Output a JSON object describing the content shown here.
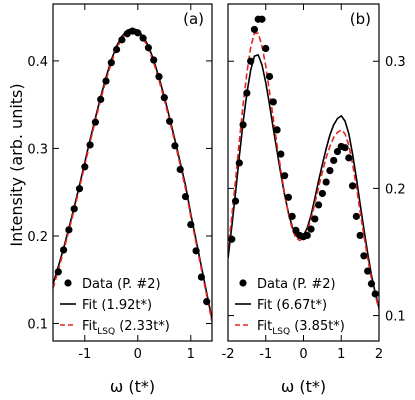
{
  "figure": {
    "ylabel": "Intensity (arb. units)"
  },
  "chart_data": [
    {
      "type": "line",
      "panel": "(a)",
      "xlabel": "ω (t*)",
      "ylabel": "Intensity (arb. units)",
      "xlim": [
        -1.6,
        1.4
      ],
      "ylim": [
        0.08,
        0.465
      ],
      "xticks": [
        -1,
        0,
        1
      ],
      "yticks": [
        0.1,
        0.2,
        0.3,
        0.4
      ],
      "ytick_side": "left",
      "legend_position": "bottom-left",
      "series": [
        {
          "name": "Data (P. #2)",
          "kind": "markers",
          "color": "#000000",
          "x": [
            -1.5,
            -1.4,
            -1.3,
            -1.2,
            -1.1,
            -1.0,
            -0.9,
            -0.8,
            -0.7,
            -0.6,
            -0.5,
            -0.4,
            -0.3,
            -0.2,
            -0.1,
            0.0,
            0.1,
            0.2,
            0.3,
            0.4,
            0.5,
            0.6,
            0.7,
            0.8,
            0.9,
            1.0,
            1.1,
            1.2,
            1.3
          ],
          "y": [
            0.159,
            0.184,
            0.207,
            0.231,
            0.254,
            0.279,
            0.304,
            0.33,
            0.356,
            0.377,
            0.398,
            0.413,
            0.424,
            0.431,
            0.434,
            0.432,
            0.426,
            0.415,
            0.401,
            0.382,
            0.358,
            0.331,
            0.303,
            0.276,
            0.245,
            0.213,
            0.183,
            0.153,
            0.125
          ]
        },
        {
          "name": "Fit (1.92t*)",
          "kind": "line",
          "color": "#000000",
          "dash": "solid",
          "x": [
            -1.6,
            -1.5,
            -1.4,
            -1.3,
            -1.2,
            -1.1,
            -1.0,
            -0.9,
            -0.8,
            -0.7,
            -0.6,
            -0.5,
            -0.4,
            -0.3,
            -0.2,
            -0.1,
            0.0,
            0.1,
            0.2,
            0.3,
            0.4,
            0.5,
            0.6,
            0.7,
            0.8,
            0.9,
            1.0,
            1.1,
            1.2,
            1.3,
            1.4
          ],
          "y": [
            0.145,
            0.165,
            0.186,
            0.209,
            0.233,
            0.258,
            0.284,
            0.31,
            0.335,
            0.359,
            0.381,
            0.401,
            0.417,
            0.428,
            0.435,
            0.437,
            0.435,
            0.428,
            0.417,
            0.401,
            0.381,
            0.359,
            0.335,
            0.31,
            0.284,
            0.258,
            0.225,
            0.195,
            0.165,
            0.135,
            0.105
          ]
        },
        {
          "name": "Fit_LSQ (2.33t*)",
          "kind": "line",
          "color": "#e8251f",
          "dash": "dashed",
          "x": [
            -1.6,
            -1.5,
            -1.4,
            -1.3,
            -1.2,
            -1.1,
            -1.0,
            -0.9,
            -0.8,
            -0.7,
            -0.6,
            -0.5,
            -0.4,
            -0.3,
            -0.2,
            -0.1,
            0.0,
            0.1,
            0.2,
            0.3,
            0.4,
            0.5,
            0.6,
            0.7,
            0.8,
            0.9,
            1.0,
            1.1,
            1.2,
            1.3,
            1.4
          ],
          "y": [
            0.14,
            0.161,
            0.183,
            0.206,
            0.23,
            0.255,
            0.281,
            0.307,
            0.332,
            0.356,
            0.378,
            0.398,
            0.414,
            0.426,
            0.433,
            0.435,
            0.433,
            0.426,
            0.414,
            0.398,
            0.378,
            0.356,
            0.332,
            0.307,
            0.281,
            0.254,
            0.222,
            0.192,
            0.162,
            0.132,
            0.102
          ]
        }
      ],
      "legend": [
        {
          "series": 0,
          "text": "Data (P. #2)"
        },
        {
          "series": 1,
          "text": "Fit (1.92t*)"
        },
        {
          "series": 2,
          "text_main": "Fit",
          "text_sub": "LSQ",
          "text_after": " (2.33t*)"
        }
      ]
    },
    {
      "type": "line",
      "panel": "(b)",
      "xlabel": "ω (t*)",
      "xlim": [
        -2.0,
        2.0
      ],
      "ylim": [
        0.08,
        0.345
      ],
      "xticks": [
        -2,
        -1,
        0,
        1,
        2
      ],
      "yticks": [
        0.1,
        0.2,
        0.3
      ],
      "ytick_side": "right",
      "legend_position": "bottom-left",
      "series": [
        {
          "name": "Data (P. #2)",
          "kind": "markers",
          "color": "#000000",
          "x": [
            -1.9,
            -1.8,
            -1.7,
            -1.6,
            -1.5,
            -1.4,
            -1.3,
            -1.2,
            -1.1,
            -1.0,
            -0.9,
            -0.8,
            -0.7,
            -0.6,
            -0.5,
            -0.4,
            -0.3,
            -0.2,
            -0.1,
            0.0,
            0.1,
            0.2,
            0.3,
            0.4,
            0.5,
            0.6,
            0.7,
            0.8,
            0.9,
            1.0,
            1.1,
            1.2,
            1.3,
            1.4,
            1.5,
            1.6,
            1.7,
            1.8,
            1.9
          ],
          "y": [
            0.16,
            0.19,
            0.22,
            0.25,
            0.275,
            0.3,
            0.325,
            0.333,
            0.333,
            0.31,
            0.288,
            0.268,
            0.246,
            0.227,
            0.21,
            0.193,
            0.178,
            0.167,
            0.163,
            0.162,
            0.163,
            0.168,
            0.176,
            0.187,
            0.196,
            0.205,
            0.214,
            0.222,
            0.229,
            0.233,
            0.232,
            0.224,
            0.202,
            0.178,
            0.163,
            0.147,
            0.135,
            0.125,
            0.117
          ]
        },
        {
          "name": "Fit (6.67t*)",
          "kind": "line",
          "color": "#000000",
          "dash": "solid",
          "x": [
            -2.0,
            -1.9,
            -1.8,
            -1.7,
            -1.6,
            -1.5,
            -1.4,
            -1.3,
            -1.2,
            -1.1,
            -1.0,
            -0.9,
            -0.8,
            -0.7,
            -0.6,
            -0.5,
            -0.4,
            -0.3,
            -0.2,
            -0.1,
            0.0,
            0.1,
            0.2,
            0.3,
            0.4,
            0.5,
            0.6,
            0.7,
            0.8,
            0.9,
            1.0,
            1.1,
            1.2,
            1.3,
            1.4,
            1.5,
            1.6,
            1.7,
            1.8,
            1.9,
            2.0
          ],
          "y": [
            0.145,
            0.17,
            0.197,
            0.225,
            0.252,
            0.275,
            0.293,
            0.304,
            0.305,
            0.297,
            0.283,
            0.266,
            0.247,
            0.229,
            0.211,
            0.195,
            0.181,
            0.17,
            0.163,
            0.161,
            0.163,
            0.169,
            0.179,
            0.192,
            0.206,
            0.219,
            0.231,
            0.242,
            0.25,
            0.255,
            0.257,
            0.253,
            0.243,
            0.227,
            0.208,
            0.188,
            0.168,
            0.149,
            0.132,
            0.118,
            0.106
          ]
        },
        {
          "name": "Fit_LSQ (3.85t*)",
          "kind": "line",
          "color": "#e8251f",
          "dash": "dashed",
          "x": [
            -2.0,
            -1.9,
            -1.8,
            -1.7,
            -1.6,
            -1.5,
            -1.4,
            -1.3,
            -1.2,
            -1.1,
            -1.0,
            -0.9,
            -0.8,
            -0.7,
            -0.6,
            -0.5,
            -0.4,
            -0.3,
            -0.2,
            -0.1,
            0.0,
            0.1,
            0.2,
            0.3,
            0.4,
            0.5,
            0.6,
            0.7,
            0.8,
            0.9,
            1.0,
            1.1,
            1.2,
            1.3,
            1.4,
            1.5,
            1.6,
            1.7,
            1.8,
            1.9,
            2.0
          ],
          "y": [
            0.152,
            0.178,
            0.207,
            0.237,
            0.266,
            0.291,
            0.311,
            0.322,
            0.322,
            0.312,
            0.296,
            0.276,
            0.255,
            0.234,
            0.214,
            0.196,
            0.18,
            0.168,
            0.161,
            0.159,
            0.161,
            0.167,
            0.176,
            0.188,
            0.201,
            0.213,
            0.224,
            0.233,
            0.24,
            0.244,
            0.246,
            0.243,
            0.234,
            0.219,
            0.201,
            0.182,
            0.163,
            0.145,
            0.129,
            0.116,
            0.105
          ]
        }
      ],
      "legend": [
        {
          "series": 0,
          "text": "Data (P. #2)"
        },
        {
          "series": 1,
          "text": "Fit (6.67t*)"
        },
        {
          "series": 2,
          "text_main": "Fit",
          "text_sub": "LSQ",
          "text_after": " (3.85t*)"
        }
      ]
    }
  ]
}
